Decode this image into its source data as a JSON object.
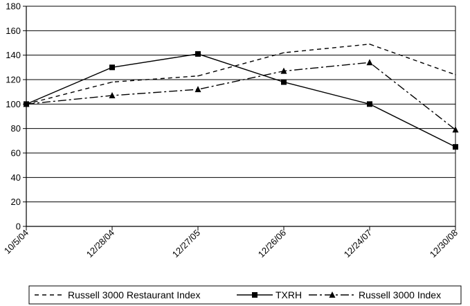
{
  "chart_data": {
    "type": "line",
    "title": "",
    "xlabel": "",
    "ylabel": "",
    "x": [
      "10/5/04",
      "12/28/04",
      "12/27/05",
      "12/26/06",
      "12/24/07",
      "12/30/08"
    ],
    "ylim": [
      0,
      180
    ],
    "yticks": [
      0,
      20,
      40,
      60,
      80,
      100,
      120,
      140,
      160,
      180
    ],
    "grid": true,
    "legend": "bottom",
    "series": [
      {
        "name": "Russell 3000 Restaurant Index",
        "style": "dashed",
        "marker": "none",
        "color": "#000000",
        "values": [
          100,
          118,
          123,
          142,
          149,
          124
        ]
      },
      {
        "name": "TXRH",
        "style": "solid",
        "marker": "square",
        "color": "#000000",
        "values": [
          100,
          130,
          141,
          118,
          100,
          65
        ]
      },
      {
        "name": "Russell 3000 Index",
        "style": "dash-dot",
        "marker": "triangle",
        "color": "#000000",
        "values": [
          100,
          107,
          112,
          127,
          134,
          79
        ]
      }
    ]
  }
}
